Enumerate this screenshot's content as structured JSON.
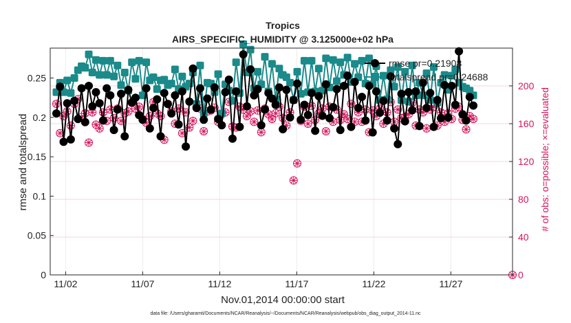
{
  "chart_data": {
    "type": "line",
    "title": "Tropics",
    "subtitle": "AIRS_SPECIFIC_HUMIDITY @ 3.125000e+02 hPa",
    "xlabel": "Nov.01,2014 00:00:00 start",
    "ylabel": "rmse and totalspread",
    "ylabel_right": "# of obs: o=possible; ×=evaluated",
    "x_ticks": [
      "11/02",
      "11/07",
      "11/12",
      "11/17",
      "11/22",
      "11/27"
    ],
    "x_tick_days": [
      2,
      7,
      12,
      17,
      22,
      27
    ],
    "xlim_days": [
      1,
      31
    ],
    "y_ticks": [
      "0",
      "0.05",
      "0.1",
      "0.15",
      "0.2",
      "0.25"
    ],
    "y_tick_values": [
      0,
      0.05,
      0.1,
      0.15,
      0.2,
      0.25
    ],
    "ylim": [
      0,
      0.288
    ],
    "y2_ticks": [
      "0",
      "40",
      "80",
      "120",
      "160",
      "200"
    ],
    "y2_tick_values": [
      0,
      40,
      80,
      120,
      160,
      200
    ],
    "y2lim": [
      0,
      240
    ],
    "grid": true,
    "legend_position": "top-right",
    "series": [
      {
        "name": "rmse pr=0.21908",
        "color": "#000000",
        "marker": "filled-circle",
        "values": [
          0.205,
          0.239,
          0.169,
          0.218,
          0.172,
          0.221,
          0.198,
          0.237,
          0.194,
          0.24,
          0.214,
          0.232,
          0.218,
          0.196,
          0.237,
          0.228,
          0.184,
          0.21,
          0.23,
          0.176,
          0.235,
          0.219,
          0.225,
          0.203,
          0.197,
          0.237,
          0.186,
          0.212,
          0.223,
          0.176,
          0.231,
          0.217,
          0.205,
          0.228,
          0.191,
          0.233,
          0.163,
          0.22,
          0.262,
          0.212,
          0.237,
          0.197,
          0.224,
          0.21,
          0.238,
          0.198,
          0.19,
          0.232,
          0.248,
          0.173,
          0.233,
          0.188,
          0.28,
          0.214,
          0.261,
          0.228,
          0.236,
          0.19,
          0.21,
          0.231,
          0.224,
          0.216,
          0.238,
          0.185,
          0.235,
          0.2,
          0.222,
          0.243,
          0.197,
          0.216,
          0.203,
          0.231,
          0.183,
          0.227,
          0.202,
          0.242,
          0.199,
          0.213,
          0.236,
          0.184,
          0.24,
          0.253,
          0.188,
          0.245,
          0.212,
          0.226,
          0.196,
          0.24,
          0.181,
          0.233,
          0.206,
          0.221,
          0.196,
          0.252,
          0.186,
          0.166,
          0.23,
          0.195,
          0.232,
          0.209,
          0.233,
          0.189,
          0.244,
          0.212,
          0.231,
          0.188,
          0.222,
          0.199,
          0.241,
          0.2,
          0.24,
          0.216,
          0.284,
          0.204,
          0.196,
          0.226,
          0.215
        ]
      },
      {
        "name": "totalspread pr=0.24688",
        "color": "#1a8a8a",
        "marker": "filled-square",
        "values": [
          0.232,
          0.244,
          0.232,
          0.247,
          0.231,
          0.25,
          0.26,
          0.265,
          0.263,
          0.28,
          0.257,
          0.273,
          0.254,
          0.272,
          0.254,
          0.272,
          0.252,
          0.266,
          0.241,
          0.257,
          0.234,
          0.27,
          0.249,
          0.272,
          0.228,
          0.27,
          0.247,
          0.251,
          0.236,
          0.247,
          0.248,
          0.241,
          0.243,
          0.261,
          0.236,
          0.252,
          0.239,
          0.243,
          0.257,
          0.217,
          0.266,
          0.205,
          0.244,
          0.243,
          0.232,
          0.255,
          0.205,
          0.242,
          0.234,
          0.221,
          0.27,
          0.231,
          0.293,
          0.257,
          0.286,
          0.237,
          0.258,
          0.242,
          0.277,
          0.233,
          0.268,
          0.223,
          0.262,
          0.254,
          0.251,
          0.244,
          0.222,
          0.258,
          0.23,
          0.272,
          0.232,
          0.272,
          0.233,
          0.262,
          0.234,
          0.275,
          0.238,
          0.273,
          0.246,
          0.27,
          0.254,
          0.276,
          0.245,
          0.268,
          0.251,
          0.272,
          0.243,
          0.275,
          0.242,
          0.265,
          0.222,
          0.253,
          0.223,
          0.26,
          0.239,
          0.264,
          0.222,
          0.258,
          0.22,
          0.266,
          0.228,
          0.244,
          0.228,
          0.256,
          0.222,
          0.264,
          0.219,
          0.244,
          0.254,
          0.235,
          0.253,
          0.261,
          0.244,
          0.239,
          0.237,
          0.234,
          0.228
        ]
      },
      {
        "name": "# of obs possible",
        "color": "#d6145c",
        "marker": "open-circle",
        "axis": "right",
        "values": [
          181,
          150,
          168,
          173,
          158,
          181,
          186,
          167,
          171,
          140,
          172,
          159,
          155,
          172,
          163,
          175,
          166,
          176,
          163,
          171,
          173,
          182,
          176,
          178,
          165,
          161,
          168,
          183,
          171,
          168,
          143,
          181,
          173,
          160,
          176,
          150,
          172,
          156,
          163,
          178,
          176,
          152,
          173,
          174,
          177,
          162,
          170,
          172,
          183,
          157,
          156,
          178,
          175,
          168,
          173,
          162,
          174,
          151,
          176,
          170,
          165,
          171,
          178,
          166,
          158,
          172,
          148,
          174,
          163,
          178,
          160,
          179,
          164,
          171,
          176,
          152,
          178,
          162,
          175,
          164,
          170,
          165,
          181,
          162,
          172,
          162,
          175,
          151,
          174,
          168,
          176,
          160,
          172,
          183,
          162,
          175,
          166,
          167,
          170,
          182,
          158,
          175,
          172,
          155,
          175,
          178,
          158,
          172,
          162,
          171,
          165,
          176,
          178,
          164,
          154,
          168,
          165
        ]
      },
      {
        "name": "# of obs evaluated",
        "color": "#d6145c",
        "marker": "asterisk",
        "axis": "right",
        "values": [
          181,
          150,
          168,
          173,
          158,
          181,
          186,
          167,
          171,
          140,
          172,
          159,
          155,
          172,
          163,
          175,
          166,
          176,
          163,
          171,
          173,
          182,
          176,
          178,
          165,
          161,
          168,
          183,
          171,
          168,
          143,
          181,
          173,
          160,
          176,
          150,
          172,
          156,
          163,
          178,
          176,
          152,
          173,
          174,
          177,
          162,
          170,
          172,
          183,
          157,
          156,
          178,
          175,
          168,
          173,
          162,
          174,
          151,
          176,
          170,
          165,
          171,
          178,
          166,
          158,
          172,
          148,
          174,
          163,
          178,
          160,
          179,
          164,
          171,
          176,
          152,
          178,
          162,
          175,
          164,
          170,
          165,
          181,
          162,
          172,
          162,
          175,
          151,
          174,
          168,
          176,
          160,
          172,
          183,
          162,
          175,
          166,
          167,
          170,
          182,
          158,
          175,
          172,
          155,
          175,
          178,
          158,
          172,
          162,
          171,
          165,
          176,
          178,
          164,
          154,
          168,
          165
        ]
      }
    ],
    "obs_special": [
      {
        "day_index": 66,
        "possible": 100
      },
      {
        "day_index": 67,
        "possible": 118
      },
      {
        "day_index": 124,
        "possible": 0
      }
    ],
    "footer": "data file: /Users/gharamti/Documents/NCAR/Reanalysis/~/Documents/NCAR/Reanalysis/webpub/obs_diag_output_2014-11.nc"
  }
}
